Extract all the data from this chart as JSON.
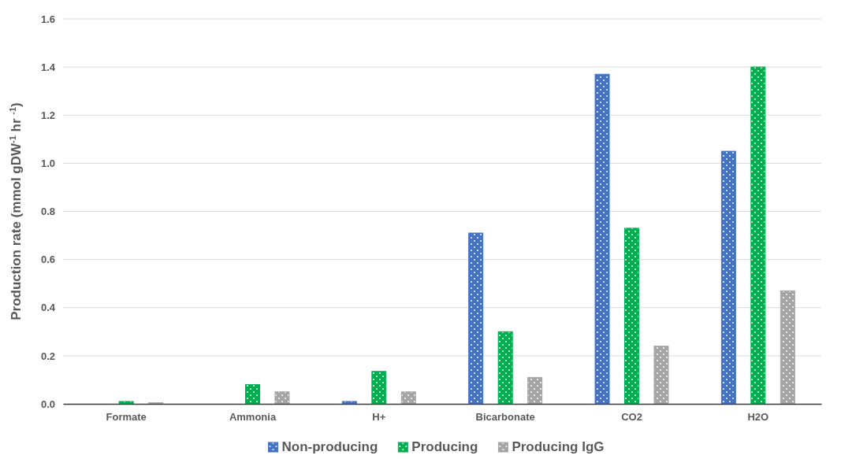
{
  "chart_data": {
    "type": "bar",
    "ylabel": "Production rate (mmol gDW$^{-1}$ hr $^{-1}$)",
    "categories": [
      "Formate",
      "Ammonia",
      "H+",
      "Bicarbonate",
      "CO2",
      "H2O"
    ],
    "series": [
      {
        "name": "Non-producing",
        "color": "#4472c4",
        "values": [
          0,
          0,
          0.01,
          0.71,
          1.37,
          1.05
        ]
      },
      {
        "name": "Producing",
        "color": "#00b050",
        "values": [
          0.01,
          0.08,
          0.135,
          0.3,
          0.73,
          1.4
        ]
      },
      {
        "name": "Producing IgG",
        "color": "#a5a5a5",
        "values": [
          0.005,
          0.05,
          0.05,
          0.11,
          0.24,
          0.47
        ]
      }
    ],
    "ylim": [
      0,
      1.6
    ],
    "yticks": [
      {
        "value": 0,
        "label": "0.0"
      },
      {
        "value": 0.2,
        "label": "0.2"
      },
      {
        "value": 0.4,
        "label": "0.4"
      },
      {
        "value": 0.6,
        "label": "0.6"
      },
      {
        "value": 0.8,
        "label": "0.8"
      },
      {
        "value": 1,
        "label": "1.0"
      },
      {
        "value": 1.2,
        "label": "1.2"
      },
      {
        "value": 1.4,
        "label": "1.4"
      },
      {
        "value": 1.6,
        "label": "1.6"
      }
    ],
    "grid": "y",
    "legend": "bottom"
  }
}
